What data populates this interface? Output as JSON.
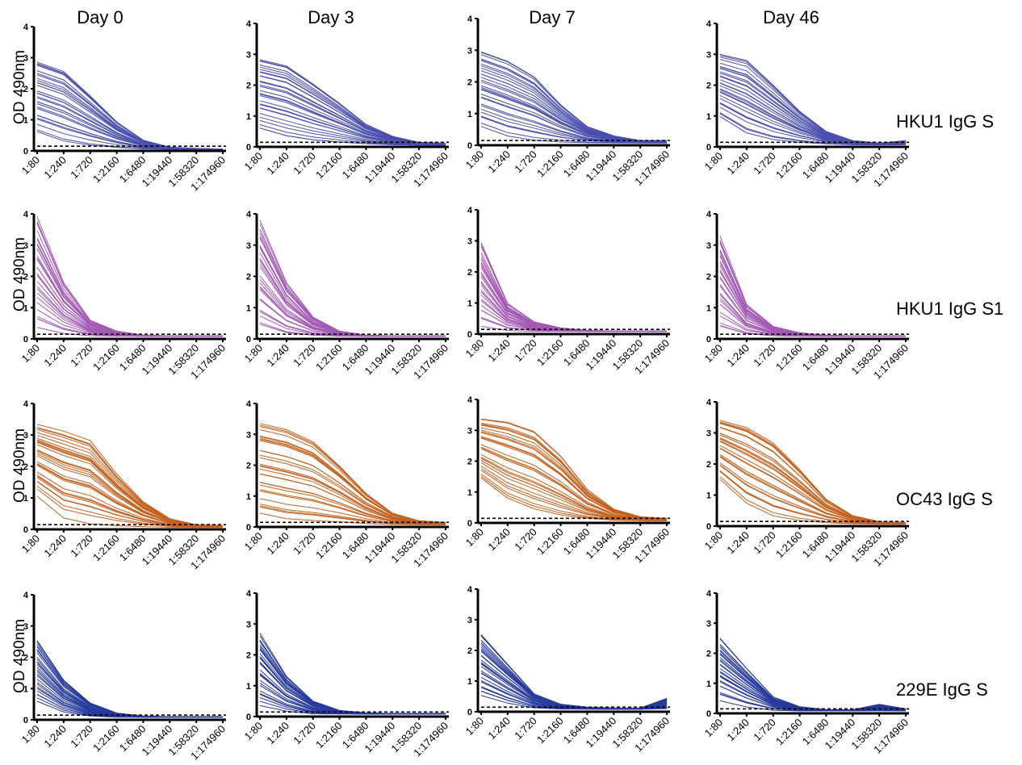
{
  "columns": [
    "Day 0",
    "Day 3",
    "Day 7",
    "Day 46"
  ],
  "row_labels": [
    "HKU1 IgG S",
    "HKU1 IgG S1",
    "OC43 IgG S",
    "229E IgG S"
  ],
  "y_axis_label": "OD 490nm",
  "y_ticks": [
    "0",
    "1",
    "2",
    "3",
    "4"
  ],
  "x_ticks": [
    "1:80",
    "1:240",
    "1:720",
    "1:2160",
    "1:6480",
    "1:19440",
    "1:58320",
    "1:174960"
  ],
  "series_colors": {
    "HKU1 IgG S": "#4a4fae",
    "HKU1 IgG S1": "#a35ab5",
    "OC43 IgG S": "#c4621f",
    "229E IgG S": "#283a9c"
  },
  "chart_data": [
    {
      "type": "line",
      "row": "HKU1 IgG S",
      "column": "Day 0",
      "ylim": [
        0,
        4
      ],
      "cutoff": 0.15,
      "line_count": 30,
      "x": [
        "1:80",
        "1:240",
        "1:720",
        "1:2160",
        "1:6480",
        "1:19440",
        "1:58320",
        "1:174960"
      ],
      "max_curve": [
        2.9,
        2.6,
        1.8,
        0.95,
        0.35,
        0.12,
        0.08,
        0.06
      ],
      "min_curve": [
        0.5,
        0.2,
        0.1,
        0.07,
        0.05,
        0.05,
        0.05,
        0.05
      ]
    },
    {
      "type": "line",
      "row": "HKU1 IgG S",
      "column": "Day 3",
      "ylim": [
        0,
        4
      ],
      "cutoff": 0.15,
      "line_count": 30,
      "x": [
        "1:80",
        "1:240",
        "1:720",
        "1:2160",
        "1:6480",
        "1:19440",
        "1:58320",
        "1:174960"
      ],
      "max_curve": [
        2.9,
        2.7,
        2.1,
        1.45,
        0.75,
        0.35,
        0.15,
        0.12
      ],
      "min_curve": [
        0.45,
        0.2,
        0.1,
        0.07,
        0.06,
        0.05,
        0.05,
        0.05
      ]
    },
    {
      "type": "line",
      "row": "HKU1 IgG S",
      "column": "Day 7",
      "ylim": [
        0,
        4
      ],
      "cutoff": 0.15,
      "line_count": 30,
      "x": [
        "1:80",
        "1:240",
        "1:720",
        "1:2160",
        "1:6480",
        "1:19440",
        "1:58320",
        "1:174960"
      ],
      "max_curve": [
        3.0,
        2.7,
        2.2,
        1.3,
        0.6,
        0.3,
        0.15,
        0.15
      ],
      "min_curve": [
        0.55,
        0.25,
        0.12,
        0.08,
        0.07,
        0.07,
        0.07,
        0.07
      ]
    },
    {
      "type": "line",
      "row": "HKU1 IgG S",
      "column": "Day 46",
      "ylim": [
        0,
        4
      ],
      "cutoff": 0.15,
      "line_count": 30,
      "x": [
        "1:80",
        "1:240",
        "1:720",
        "1:2160",
        "1:6480",
        "1:19440",
        "1:58320",
        "1:174960"
      ],
      "max_curve": [
        3.0,
        2.8,
        2.0,
        1.15,
        0.5,
        0.2,
        0.12,
        0.2
      ],
      "min_curve": [
        0.85,
        0.3,
        0.12,
        0.08,
        0.07,
        0.06,
        0.06,
        0.06
      ]
    },
    {
      "type": "line",
      "row": "HKU1 IgG S1",
      "column": "Day 0",
      "ylim": [
        0,
        4
      ],
      "cutoff": 0.15,
      "line_count": 30,
      "x": [
        "1:80",
        "1:240",
        "1:720",
        "1:2160",
        "1:6480",
        "1:19440",
        "1:58320",
        "1:174960"
      ],
      "max_curve": [
        3.9,
        1.8,
        0.6,
        0.25,
        0.12,
        0.1,
        0.1,
        0.1
      ],
      "min_curve": [
        0.2,
        0.1,
        0.08,
        0.08,
        0.08,
        0.08,
        0.08,
        0.08
      ]
    },
    {
      "type": "line",
      "row": "HKU1 IgG S1",
      "column": "Day 3",
      "ylim": [
        0,
        4
      ],
      "cutoff": 0.15,
      "line_count": 30,
      "x": [
        "1:80",
        "1:240",
        "1:720",
        "1:2160",
        "1:6480",
        "1:19440",
        "1:58320",
        "1:174960"
      ],
      "max_curve": [
        3.8,
        1.8,
        0.7,
        0.25,
        0.12,
        0.1,
        0.1,
        0.1
      ],
      "min_curve": [
        0.25,
        0.1,
        0.08,
        0.08,
        0.08,
        0.08,
        0.08,
        0.08
      ]
    },
    {
      "type": "line",
      "row": "HKU1 IgG S1",
      "column": "Day 7",
      "ylim": [
        0,
        4
      ],
      "cutoff": 0.15,
      "line_count": 30,
      "x": [
        "1:80",
        "1:240",
        "1:720",
        "1:2160",
        "1:6480",
        "1:19440",
        "1:58320",
        "1:174960"
      ],
      "max_curve": [
        3.0,
        1.0,
        0.4,
        0.2,
        0.12,
        0.1,
        0.1,
        0.1
      ],
      "min_curve": [
        0.2,
        0.1,
        0.08,
        0.08,
        0.08,
        0.08,
        0.08,
        0.08
      ]
    },
    {
      "type": "line",
      "row": "HKU1 IgG S1",
      "column": "Day 46",
      "ylim": [
        0,
        4
      ],
      "cutoff": 0.15,
      "line_count": 30,
      "x": [
        "1:80",
        "1:240",
        "1:720",
        "1:2160",
        "1:6480",
        "1:19440",
        "1:58320",
        "1:174960"
      ],
      "max_curve": [
        3.3,
        1.1,
        0.4,
        0.2,
        0.12,
        0.1,
        0.1,
        0.1
      ],
      "min_curve": [
        0.2,
        0.1,
        0.08,
        0.08,
        0.08,
        0.08,
        0.08,
        0.08
      ]
    },
    {
      "type": "line",
      "row": "OC43 IgG S",
      "column": "Day 0",
      "ylim": [
        0,
        4
      ],
      "cutoff": 0.15,
      "line_count": 30,
      "x": [
        "1:80",
        "1:240",
        "1:720",
        "1:2160",
        "1:6480",
        "1:19440",
        "1:58320",
        "1:174960"
      ],
      "max_curve": [
        3.4,
        3.2,
        2.9,
        1.8,
        0.9,
        0.35,
        0.15,
        0.12
      ],
      "min_curve": [
        1.0,
        0.3,
        0.12,
        0.08,
        0.07,
        0.06,
        0.06,
        0.06
      ]
    },
    {
      "type": "line",
      "row": "OC43 IgG S",
      "column": "Day 3",
      "ylim": [
        0,
        4
      ],
      "cutoff": 0.15,
      "line_count": 30,
      "x": [
        "1:80",
        "1:240",
        "1:720",
        "1:2160",
        "1:6480",
        "1:19440",
        "1:58320",
        "1:174960"
      ],
      "max_curve": [
        3.4,
        3.2,
        2.8,
        2.0,
        1.1,
        0.45,
        0.2,
        0.15
      ],
      "min_curve": [
        0.3,
        0.12,
        0.08,
        0.07,
        0.06,
        0.06,
        0.06,
        0.06
      ]
    },
    {
      "type": "line",
      "row": "OC43 IgG S",
      "column": "Day 7",
      "ylim": [
        0,
        4
      ],
      "cutoff": 0.15,
      "line_count": 30,
      "x": [
        "1:80",
        "1:240",
        "1:720",
        "1:2160",
        "1:6480",
        "1:19440",
        "1:58320",
        "1:174960"
      ],
      "max_curve": [
        3.4,
        3.3,
        3.0,
        2.2,
        1.1,
        0.45,
        0.2,
        0.15
      ],
      "min_curve": [
        1.3,
        0.6,
        0.25,
        0.1,
        0.07,
        0.06,
        0.06,
        0.06
      ]
    },
    {
      "type": "line",
      "row": "OC43 IgG S",
      "column": "Day 46",
      "ylim": [
        0,
        4
      ],
      "cutoff": 0.15,
      "line_count": 30,
      "x": [
        "1:80",
        "1:240",
        "1:720",
        "1:2160",
        "1:6480",
        "1:19440",
        "1:58320",
        "1:174960"
      ],
      "max_curve": [
        3.5,
        3.3,
        2.8,
        1.9,
        0.9,
        0.35,
        0.15,
        0.12
      ],
      "min_curve": [
        1.4,
        0.6,
        0.2,
        0.09,
        0.07,
        0.06,
        0.06,
        0.06
      ]
    },
    {
      "type": "line",
      "row": "229E IgG S",
      "column": "Day 0",
      "ylim": [
        0,
        4
      ],
      "cutoff": 0.15,
      "line_count": 30,
      "x": [
        "1:80",
        "1:240",
        "1:720",
        "1:2160",
        "1:6480",
        "1:19440",
        "1:58320",
        "1:174960"
      ],
      "max_curve": [
        2.6,
        1.3,
        0.55,
        0.22,
        0.12,
        0.1,
        0.1,
        0.1
      ],
      "min_curve": [
        0.5,
        0.2,
        0.1,
        0.08,
        0.08,
        0.08,
        0.08,
        0.08
      ]
    },
    {
      "type": "line",
      "row": "229E IgG S",
      "column": "Day 3",
      "ylim": [
        0,
        4
      ],
      "cutoff": 0.15,
      "line_count": 30,
      "x": [
        "1:80",
        "1:240",
        "1:720",
        "1:2160",
        "1:6480",
        "1:19440",
        "1:58320",
        "1:174960"
      ],
      "max_curve": [
        2.7,
        1.3,
        0.5,
        0.2,
        0.12,
        0.1,
        0.1,
        0.1
      ],
      "min_curve": [
        0.3,
        0.15,
        0.08,
        0.08,
        0.08,
        0.08,
        0.08,
        0.08
      ]
    },
    {
      "type": "line",
      "row": "229E IgG S",
      "column": "Day 7",
      "ylim": [
        0,
        4
      ],
      "cutoff": 0.15,
      "line_count": 30,
      "x": [
        "1:80",
        "1:240",
        "1:720",
        "1:2160",
        "1:6480",
        "1:19440",
        "1:58320",
        "1:174960"
      ],
      "max_curve": [
        2.6,
        1.6,
        0.6,
        0.25,
        0.15,
        0.12,
        0.12,
        0.45
      ],
      "min_curve": [
        0.4,
        0.2,
        0.1,
        0.08,
        0.08,
        0.08,
        0.08,
        0.08
      ]
    },
    {
      "type": "line",
      "row": "229E IgG S",
      "column": "Day 46",
      "ylim": [
        0,
        4
      ],
      "cutoff": 0.15,
      "line_count": 30,
      "x": [
        "1:80",
        "1:240",
        "1:720",
        "1:2160",
        "1:6480",
        "1:19440",
        "1:58320",
        "1:174960"
      ],
      "max_curve": [
        2.5,
        1.5,
        0.55,
        0.22,
        0.12,
        0.12,
        0.3,
        0.15
      ],
      "min_curve": [
        0.4,
        0.2,
        0.1,
        0.08,
        0.08,
        0.08,
        0.08,
        0.08
      ]
    }
  ]
}
